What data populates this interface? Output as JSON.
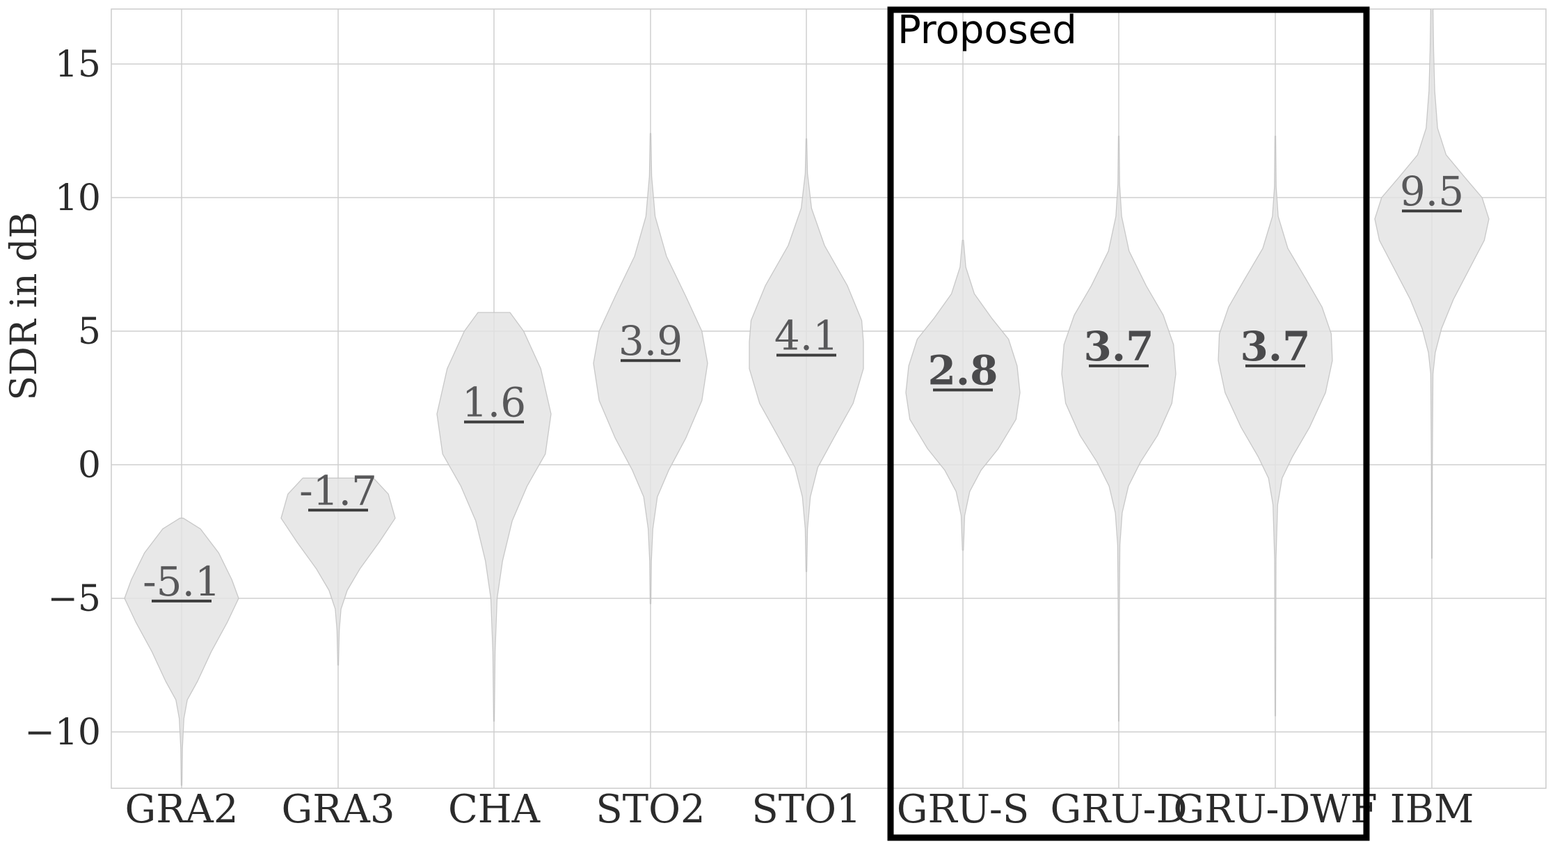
{
  "proposed_box": {
    "label": "Proposed",
    "categories": [
      "GRU-S",
      "GRU-D",
      "GRU-DWF"
    ],
    "border_color": "#000000"
  },
  "colors": {
    "background": "#ffffff",
    "gridline": "#cfcfcf",
    "frame": "#cccccc",
    "violin_fill": "#e9e9e9",
    "violin_edge": "#c9c9c9",
    "tick_text": "#2b2b2b",
    "median_text": "#58585a",
    "median_text_bold": "#4a4a4c",
    "median_underline": "#3d3d3d",
    "proposed_border": "#000000"
  },
  "chart_data": {
    "type": "violin",
    "title": "",
    "xlabel": "",
    "ylabel": "SDR in dB",
    "ylim": [
      -12.1,
      17.1
    ],
    "yticks": [
      15,
      10,
      5,
      0,
      -5,
      -10
    ],
    "ytick_labels": [
      "15",
      "10",
      "5",
      "0",
      "−5",
      "−10"
    ],
    "grid": true,
    "legend": "none",
    "categories": [
      "GRA2",
      "GRA3",
      "CHA",
      "STO2",
      "STO1",
      "GRU-S",
      "GRU-D",
      "GRU-DWF",
      "IBM"
    ],
    "medians": [
      -5.1,
      -1.7,
      1.6,
      3.9,
      4.1,
      2.8,
      3.7,
      3.7,
      9.5
    ],
    "median_labels": [
      "-5.1",
      "-1.7",
      "1.6",
      "3.9",
      "4.1",
      "2.8",
      "3.7",
      "3.7",
      "9.5"
    ],
    "bold_flags": [
      false,
      false,
      false,
      false,
      false,
      true,
      true,
      true,
      false
    ],
    "violins": [
      {
        "label": "GRA2",
        "median": -5.1,
        "range": [
          -12.0,
          -2.0
        ],
        "profile": [
          [
            -2.0,
            0.03
          ],
          [
            -2.4,
            0.33
          ],
          [
            -3.3,
            0.65
          ],
          [
            -4.3,
            0.88
          ],
          [
            -5.0,
            1.0
          ],
          [
            -5.9,
            0.8
          ],
          [
            -7.0,
            0.52
          ],
          [
            -8.1,
            0.28
          ],
          [
            -8.8,
            0.1
          ],
          [
            -9.5,
            0.04
          ],
          [
            -10.6,
            0.015
          ],
          [
            -12.0,
            0.006
          ]
        ]
      },
      {
        "label": "GRA3",
        "median": -1.7,
        "range": [
          -7.5,
          -0.5
        ],
        "profile": [
          [
            -0.5,
            0.62
          ],
          [
            -1.1,
            0.88
          ],
          [
            -2.0,
            1.0
          ],
          [
            -2.9,
            0.72
          ],
          [
            -3.9,
            0.38
          ],
          [
            -4.7,
            0.16
          ],
          [
            -5.4,
            0.05
          ],
          [
            -6.2,
            0.02
          ],
          [
            -7.5,
            0.006
          ]
        ]
      },
      {
        "label": "CHA",
        "median": 1.6,
        "range": [
          -9.6,
          5.7
        ],
        "profile": [
          [
            5.7,
            0.28
          ],
          [
            5.0,
            0.52
          ],
          [
            3.6,
            0.82
          ],
          [
            1.9,
            1.0
          ],
          [
            0.4,
            0.9
          ],
          [
            -0.8,
            0.58
          ],
          [
            -2.1,
            0.32
          ],
          [
            -3.6,
            0.15
          ],
          [
            -5.0,
            0.055
          ],
          [
            -7.0,
            0.02
          ],
          [
            -9.6,
            0.006
          ]
        ]
      },
      {
        "label": "STO2",
        "median": 3.9,
        "range": [
          -5.2,
          12.4
        ],
        "profile": [
          [
            12.4,
            0.006
          ],
          [
            10.8,
            0.02
          ],
          [
            9.3,
            0.08
          ],
          [
            7.8,
            0.28
          ],
          [
            6.3,
            0.62
          ],
          [
            5.0,
            0.9
          ],
          [
            3.8,
            1.0
          ],
          [
            2.4,
            0.9
          ],
          [
            1.0,
            0.62
          ],
          [
            -0.2,
            0.32
          ],
          [
            -1.2,
            0.12
          ],
          [
            -2.4,
            0.04
          ],
          [
            -3.6,
            0.015
          ],
          [
            -5.2,
            0.006
          ]
        ]
      },
      {
        "label": "STO1",
        "median": 4.1,
        "range": [
          -4.0,
          12.2
        ],
        "profile": [
          [
            12.2,
            0.006
          ],
          [
            10.9,
            0.02
          ],
          [
            9.6,
            0.09
          ],
          [
            8.2,
            0.32
          ],
          [
            6.7,
            0.72
          ],
          [
            5.4,
            0.97
          ],
          [
            4.6,
            1.0
          ],
          [
            3.6,
            1.0
          ],
          [
            2.3,
            0.82
          ],
          [
            1.0,
            0.48
          ],
          [
            -0.1,
            0.2
          ],
          [
            -1.2,
            0.07
          ],
          [
            -2.4,
            0.02
          ],
          [
            -4.0,
            0.006
          ]
        ]
      },
      {
        "label": "GRU-S",
        "median": 2.8,
        "range": [
          -3.2,
          8.4
        ],
        "profile": [
          [
            8.4,
            0.01
          ],
          [
            7.4,
            0.05
          ],
          [
            6.4,
            0.2
          ],
          [
            5.5,
            0.5
          ],
          [
            4.7,
            0.8
          ],
          [
            3.7,
            0.95
          ],
          [
            2.7,
            1.0
          ],
          [
            1.7,
            0.93
          ],
          [
            0.6,
            0.62
          ],
          [
            -0.2,
            0.32
          ],
          [
            -1.0,
            0.12
          ],
          [
            -1.9,
            0.03
          ],
          [
            -3.2,
            0.008
          ]
        ]
      },
      {
        "label": "GRU-D",
        "median": 3.7,
        "range": [
          -9.6,
          12.3
        ],
        "profile": [
          [
            12.3,
            0.006
          ],
          [
            10.5,
            0.015
          ],
          [
            9.3,
            0.05
          ],
          [
            8.0,
            0.18
          ],
          [
            6.7,
            0.48
          ],
          [
            5.6,
            0.78
          ],
          [
            4.5,
            0.96
          ],
          [
            3.4,
            1.0
          ],
          [
            2.3,
            0.93
          ],
          [
            1.1,
            0.68
          ],
          [
            0.1,
            0.38
          ],
          [
            -0.8,
            0.17
          ],
          [
            -1.8,
            0.06
          ],
          [
            -3.0,
            0.02
          ],
          [
            -5.5,
            0.01
          ],
          [
            -9.6,
            0.005
          ]
        ]
      },
      {
        "label": "GRU-DWF",
        "median": 3.7,
        "range": [
          -9.4,
          12.3
        ],
        "profile": [
          [
            12.3,
            0.006
          ],
          [
            10.4,
            0.015
          ],
          [
            9.3,
            0.05
          ],
          [
            8.1,
            0.22
          ],
          [
            6.9,
            0.55
          ],
          [
            5.9,
            0.82
          ],
          [
            4.9,
            0.98
          ],
          [
            3.9,
            1.0
          ],
          [
            2.7,
            0.88
          ],
          [
            1.4,
            0.6
          ],
          [
            0.3,
            0.3
          ],
          [
            -0.5,
            0.12
          ],
          [
            -1.5,
            0.04
          ],
          [
            -3.5,
            0.012
          ],
          [
            -9.4,
            0.005
          ]
        ]
      },
      {
        "label": "IBM",
        "median": 9.5,
        "range": [
          -3.5,
          17.1
        ],
        "profile": [
          [
            17.1,
            0.02
          ],
          [
            15.5,
            0.03
          ],
          [
            14.0,
            0.05
          ],
          [
            12.6,
            0.1
          ],
          [
            11.6,
            0.25
          ],
          [
            10.7,
            0.6
          ],
          [
            10.0,
            0.88
          ],
          [
            9.2,
            1.0
          ],
          [
            8.4,
            0.92
          ],
          [
            7.3,
            0.65
          ],
          [
            6.2,
            0.38
          ],
          [
            5.1,
            0.17
          ],
          [
            4.2,
            0.06
          ],
          [
            3.4,
            0.02
          ],
          [
            0.0,
            0.008
          ],
          [
            -3.5,
            0.005
          ]
        ]
      }
    ]
  }
}
